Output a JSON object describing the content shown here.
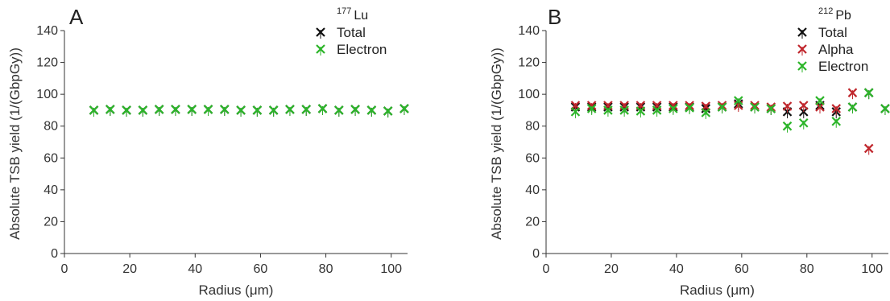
{
  "colors": {
    "total": "#111111",
    "alpha": "#c0272d",
    "electron": "#2db52a"
  },
  "chart_data": [
    {
      "type": "scatter",
      "panel_label": "A",
      "legend_title_sup": "177",
      "legend_title_base": "Lu",
      "legend": [
        "Total",
        "Electron"
      ],
      "xlabel": "Radius  (μm)",
      "ylabel": "Absolute TSB yield (1/(GbpGy))",
      "xlim": [
        0,
        105
      ],
      "ylim": [
        0,
        140
      ],
      "xticks": [
        0,
        20,
        40,
        60,
        80,
        100
      ],
      "yticks": [
        0,
        20,
        40,
        60,
        80,
        100,
        120,
        140
      ],
      "series": [
        {
          "name": "Total",
          "color_key": "total",
          "points": [
            [
              9,
              90
            ],
            [
              14,
              90.5
            ],
            [
              19,
              90
            ],
            [
              24,
              90
            ],
            [
              29,
              90.5
            ],
            [
              34,
              90.5
            ],
            [
              39,
              90.5
            ],
            [
              44,
              90.5
            ],
            [
              49,
              90.5
            ],
            [
              54,
              90
            ],
            [
              59,
              90
            ],
            [
              64,
              90
            ],
            [
              69,
              90.5
            ],
            [
              74,
              90.5
            ],
            [
              79,
              91
            ],
            [
              84,
              90
            ],
            [
              89,
              90.5
            ],
            [
              94,
              90
            ],
            [
              99,
              89.5
            ],
            [
              104,
              91
            ]
          ]
        },
        {
          "name": "Electron",
          "color_key": "electron",
          "points": [
            [
              9,
              90
            ],
            [
              14,
              90.5
            ],
            [
              19,
              90
            ],
            [
              24,
              90
            ],
            [
              29,
              90.5
            ],
            [
              34,
              90.5
            ],
            [
              39,
              90.5
            ],
            [
              44,
              90.5
            ],
            [
              49,
              90.5
            ],
            [
              54,
              90
            ],
            [
              59,
              90
            ],
            [
              64,
              90
            ],
            [
              69,
              90.5
            ],
            [
              74,
              90.5
            ],
            [
              79,
              91
            ],
            [
              84,
              90
            ],
            [
              89,
              90.5
            ],
            [
              94,
              90
            ],
            [
              99,
              89.5
            ],
            [
              104,
              91
            ]
          ]
        }
      ]
    },
    {
      "type": "scatter",
      "panel_label": "B",
      "legend_title_sup": "212",
      "legend_title_base": "Pb",
      "legend": [
        "Total",
        "Alpha",
        "Electron"
      ],
      "xlabel": "Radius  (μm)",
      "ylabel": "Absolute TSB yield (1/(GbpGy))",
      "xlim": [
        0,
        105
      ],
      "ylim": [
        0,
        140
      ],
      "xticks": [
        0,
        20,
        40,
        60,
        80,
        100
      ],
      "yticks": [
        0,
        20,
        40,
        60,
        80,
        100,
        120,
        140
      ],
      "series": [
        {
          "name": "Total",
          "color_key": "total",
          "points": [
            [
              9,
              92
            ],
            [
              14,
              92
            ],
            [
              19,
              92
            ],
            [
              24,
              92
            ],
            [
              29,
              92
            ],
            [
              34,
              92
            ],
            [
              39,
              92
            ],
            [
              44,
              92
            ],
            [
              49,
              91
            ],
            [
              54,
              92
            ],
            [
              59,
              94
            ],
            [
              64,
              92
            ],
            [
              69,
              91
            ],
            [
              74,
              89
            ],
            [
              79,
              89
            ],
            [
              84,
              93
            ],
            [
              89,
              89
            ],
            [
              94,
              92
            ],
            [
              99,
              101
            ],
            [
              104,
              91
            ]
          ]
        },
        {
          "name": "Alpha",
          "color_key": "alpha",
          "points": [
            [
              9,
              93
            ],
            [
              14,
              93
            ],
            [
              19,
              93
            ],
            [
              24,
              93
            ],
            [
              29,
              93
            ],
            [
              34,
              93
            ],
            [
              39,
              93
            ],
            [
              44,
              93
            ],
            [
              49,
              92.5
            ],
            [
              54,
              93
            ],
            [
              59,
              93
            ],
            [
              64,
              93
            ],
            [
              69,
              92
            ],
            [
              74,
              92.5
            ],
            [
              79,
              93
            ],
            [
              84,
              92
            ],
            [
              89,
              91
            ],
            [
              94,
              101
            ],
            [
              99,
              66
            ]
          ]
        },
        {
          "name": "Electron",
          "color_key": "electron",
          "points": [
            [
              9,
              89
            ],
            [
              14,
              91
            ],
            [
              19,
              90
            ],
            [
              24,
              90
            ],
            [
              29,
              89.5
            ],
            [
              34,
              90
            ],
            [
              39,
              91
            ],
            [
              44,
              91.5
            ],
            [
              49,
              88.5
            ],
            [
              54,
              92
            ],
            [
              59,
              96
            ],
            [
              64,
              92
            ],
            [
              69,
              91
            ],
            [
              74,
              80
            ],
            [
              79,
              82
            ],
            [
              84,
              96
            ],
            [
              89,
              83
            ],
            [
              94,
              92
            ],
            [
              99,
              101
            ],
            [
              104,
              91
            ]
          ]
        }
      ]
    }
  ]
}
